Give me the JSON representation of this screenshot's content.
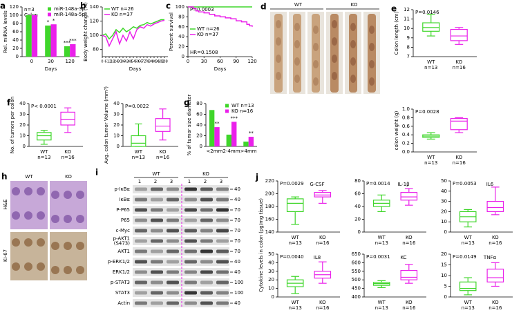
{
  "chart_data": [
    {
      "panel": "a",
      "type": "bar",
      "ylabel": "Rel. miRNA levels",
      "xlabel": "Days",
      "notes": [
        "n=3",
        "Colon"
      ],
      "categories": [
        "0",
        "30",
        "120"
      ],
      "legend": "upper right",
      "series": [
        {
          "name": "miR-148a-3p",
          "color": "#3fd62a",
          "values": [
            100,
            75,
            25
          ],
          "stars": [
            null,
            "*",
            "***"
          ]
        },
        {
          "name": "miR-148a-5p",
          "color": "#ea20ea",
          "values": [
            100,
            78,
            30
          ],
          "stars": [
            null,
            "*",
            "***"
          ]
        }
      ],
      "ylim": [
        0,
        120
      ],
      "yticks": [
        0,
        20,
        40,
        60,
        80,
        100,
        120
      ]
    },
    {
      "panel": "b",
      "type": "line",
      "ylabel": "Body weight change (%)",
      "xlabel": "Days",
      "legend": "upper left",
      "x": [
        0,
        6,
        12,
        18,
        24,
        30,
        36,
        42,
        48,
        54,
        60,
        66,
        72,
        78,
        84,
        90,
        96,
        102,
        108
      ],
      "series": [
        {
          "name": "WT n=26",
          "color": "#3fd62a",
          "values": [
            100,
            102,
            95,
            100,
            108,
            104,
            110,
            105,
            108,
            112,
            110,
            114,
            115,
            118,
            116,
            118,
            120,
            122,
            122
          ]
        },
        {
          "name": "KO n=37",
          "color": "#ea20ea",
          "values": [
            100,
            98,
            85,
            95,
            105,
            88,
            100,
            92,
            105,
            95,
            108,
            112,
            110,
            115,
            113,
            116,
            118,
            120,
            121
          ]
        }
      ],
      "xlim": [
        0,
        114
      ],
      "xticks": [
        0,
        6,
        12,
        18,
        24,
        30,
        36,
        42,
        48,
        54,
        60,
        66,
        72,
        78,
        84,
        90,
        96,
        102,
        108
      ],
      "ylim": [
        70,
        140
      ],
      "yticks": [
        80,
        100,
        120,
        140
      ]
    },
    {
      "panel": "c",
      "type": "step",
      "ylabel": "Percent survival",
      "xlabel": "Days",
      "notes": [
        "P=0.0003"
      ],
      "footer_note": "HR=0.1508",
      "legend": "center left",
      "series": [
        {
          "name": "WT n=26",
          "color": "#3fd62a",
          "x": [
            0,
            120
          ],
          "values": [
            100,
            100
          ]
        },
        {
          "name": "KO n=37",
          "color": "#ea20ea",
          "x": [
            0,
            10,
            15,
            20,
            30,
            40,
            50,
            60,
            70,
            80,
            90,
            100,
            110,
            115,
            120
          ],
          "values": [
            100,
            97,
            92,
            90,
            88,
            85,
            82,
            80,
            78,
            76,
            72,
            70,
            65,
            62,
            60
          ]
        }
      ],
      "xlim": [
        0,
        120
      ],
      "xticks": [
        0,
        30,
        60,
        90,
        120
      ],
      "ylim": [
        0,
        100
      ],
      "yticks": [
        0,
        20,
        40,
        60,
        80,
        100
      ]
    },
    {
      "panel": "d",
      "type": "photo",
      "groups": [
        "WT",
        "KO"
      ]
    },
    {
      "panel": "e",
      "type": "box",
      "ylabel": "Colon length (cm)",
      "notes": [
        "P=0.0146"
      ],
      "groups": [
        {
          "name": "WT",
          "n": "n=13",
          "color": "#3fd62a",
          "stats": [
            9.2,
            9.7,
            10.1,
            10.6,
            11.5
          ]
        },
        {
          "name": "KO",
          "n": "n=16",
          "color": "#ea20ea",
          "stats": [
            8.3,
            8.7,
            9.2,
            9.9,
            10.1
          ]
        }
      ],
      "ylim": [
        7,
        12
      ],
      "yticks": [
        7,
        8,
        9,
        10,
        11,
        12
      ]
    },
    {
      "type": "box",
      "ylabel": "colon weight (g)",
      "notes": [
        "P=0.0028"
      ],
      "groups": [
        {
          "name": "WT",
          "n": "n=13",
          "color": "#3fd62a",
          "stats": [
            0.3,
            0.34,
            0.37,
            0.4,
            0.45
          ]
        },
        {
          "name": "KO",
          "n": "n=16",
          "color": "#ea20ea",
          "stats": [
            0.45,
            0.52,
            0.72,
            0.78,
            0.8
          ]
        }
      ],
      "ylim": [
        0,
        1
      ],
      "yticks": [
        {
          "value": 0,
          "label": "0.0"
        },
        0.2,
        0.4,
        0.6,
        0.8,
        {
          "value": 1,
          "label": "1.0"
        }
      ]
    },
    {
      "panel": "f",
      "type": "box",
      "ylabel": "No. of tumors per colon",
      "notes": [
        "P< 0.0001"
      ],
      "groups": [
        {
          "name": "WT",
          "n": "n=13",
          "color": "#3fd62a",
          "stats": [
            2,
            6,
            10,
            13,
            15
          ]
        },
        {
          "name": "KO",
          "n": "n=16",
          "color": "#ea20ea",
          "stats": [
            13,
            20,
            25,
            32,
            36
          ]
        }
      ],
      "ylim": [
        0,
        40
      ],
      "yticks": [
        0,
        10,
        20,
        30,
        40
      ]
    },
    {
      "type": "box",
      "ylabel": "Avg. colon tumor Volume (mm³)",
      "notes": [
        "P=0.0022"
      ],
      "groups": [
        {
          "name": "WT",
          "n": "n=13",
          "color": "#3fd62a",
          "stats": [
            0,
            0,
            3,
            10,
            21
          ]
        },
        {
          "name": "KO",
          "n": "n=16",
          "color": "#ea20ea",
          "stats": [
            6,
            14,
            19,
            26,
            35
          ]
        }
      ],
      "ylim": [
        0,
        40
      ],
      "yticks": [
        0,
        10,
        20,
        30,
        40
      ]
    },
    {
      "panel": "g",
      "type": "bar",
      "ylabel": "% of tumor size diameter",
      "categories": [
        "<2mm",
        "2-4mm",
        ">4mm"
      ],
      "legend": "upper right",
      "series": [
        {
          "name": "WT n=13",
          "color": "#3fd62a",
          "values": [
            68,
            22,
            9
          ],
          "stars": [
            null,
            null,
            null
          ]
        },
        {
          "name": "KO n=16",
          "color": "#ea20ea",
          "values": [
            36,
            46,
            18
          ],
          "stars": [
            "**",
            "***",
            "**"
          ]
        }
      ],
      "ylim": [
        0,
        80
      ],
      "yticks": [
        0,
        20,
        40,
        60,
        80
      ]
    },
    {
      "panel": "h",
      "type": "photo-grid",
      "columns": [
        "WT",
        "KO"
      ],
      "rows": [
        "H&E",
        "Ki-67"
      ]
    },
    {
      "panel": "i",
      "type": "blot",
      "groups": [
        {
          "name": "WT",
          "lanes": [
            "1",
            "2",
            "3"
          ]
        },
        {
          "name": "KO",
          "lanes": [
            "1",
            "2",
            "3"
          ]
        }
      ],
      "rows": [
        {
          "label": "p-IκBα",
          "mw": 40
        },
        {
          "label": "IκBα",
          "mw": 40
        },
        {
          "label": "P-P65",
          "mw": 70
        },
        {
          "label": "P65",
          "mw": 70
        },
        {
          "label": "c-Myc",
          "mw": 70
        },
        {
          "label": "p-AKT1",
          "sublabel": "(S473)",
          "mw": 70
        },
        {
          "label": "AKT1",
          "mw": 70
        },
        {
          "label": "p-ERK1/2",
          "mw": 40
        },
        {
          "label": "ERK1/2",
          "mw": 40
        },
        {
          "label": "p-STAT3",
          "mw": 100
        },
        {
          "label": "STAT3",
          "mw": 100
        },
        {
          "label": "Actin",
          "mw": 40
        }
      ]
    },
    {
      "panel": "j",
      "type": "axis-label",
      "text": "Cytokine levels in colon (pg/mg tissue)"
    },
    {
      "type": "box",
      "title": "G-CSF",
      "notes": [
        "P=0.0029"
      ],
      "groups": [
        {
          "name": "WT",
          "n": "n=13",
          "color": "#3fd62a",
          "stats": [
            152,
            172,
            185,
            192,
            195
          ]
        },
        {
          "name": "KO",
          "n": "n=16",
          "color": "#ea20ea",
          "stats": [
            185,
            195,
            198,
            202,
            205
          ]
        }
      ],
      "ylim": [
        140,
        220
      ],
      "yticks": [
        140,
        160,
        180,
        200,
        220
      ]
    },
    {
      "type": "box",
      "title": "IL-1β",
      "notes": [
        "P=0.0014"
      ],
      "groups": [
        {
          "name": "WT",
          "n": "n=13",
          "color": "#3fd62a",
          "stats": [
            32,
            40,
            45,
            50,
            58
          ]
        },
        {
          "name": "KO",
          "n": "n=16",
          "color": "#ea20ea",
          "stats": [
            42,
            50,
            55,
            62,
            68
          ]
        }
      ],
      "ylim": [
        0,
        80
      ],
      "yticks": [
        0,
        20,
        40,
        60,
        80
      ]
    },
    {
      "type": "box",
      "title": "IL6",
      "notes": [
        "P=0.0053"
      ],
      "groups": [
        {
          "name": "WT",
          "n": "n=13",
          "color": "#3fd62a",
          "stats": [
            5,
            10,
            15,
            20,
            22
          ]
        },
        {
          "name": "KO",
          "n": "n=16",
          "color": "#ea20ea",
          "stats": [
            17,
            20,
            24,
            30,
            44
          ]
        }
      ],
      "ylim": [
        0,
        50
      ],
      "yticks": [
        0,
        10,
        20,
        30,
        40,
        50
      ]
    },
    {
      "type": "box",
      "title": "IL8",
      "notes": [
        "P=0.0040"
      ],
      "groups": [
        {
          "name": "WT",
          "n": "n=13",
          "color": "#3fd62a",
          "stats": [
            4,
            12,
            16,
            20,
            24
          ]
        },
        {
          "name": "KO",
          "n": "n=16",
          "color": "#ea20ea",
          "stats": [
            16,
            22,
            26,
            30,
            41
          ]
        }
      ],
      "ylim": [
        0,
        50
      ],
      "yticks": [
        0,
        10,
        20,
        30,
        40,
        50
      ]
    },
    {
      "type": "box",
      "title": "KC",
      "notes": [
        "P=0.0031"
      ],
      "groups": [
        {
          "name": "WT",
          "n": "n=13",
          "color": "#3fd62a",
          "stats": [
            455,
            468,
            478,
            485,
            495
          ]
        },
        {
          "name": "KO",
          "n": "n=16",
          "color": "#ea20ea",
          "stats": [
            480,
            500,
            515,
            555,
            590
          ]
        }
      ],
      "ylim": [
        400,
        650
      ],
      "yticks": [
        400,
        450,
        500,
        550,
        600,
        650
      ]
    },
    {
      "type": "box",
      "title": "TNFα",
      "notes": [
        "P=0.0149"
      ],
      "groups": [
        {
          "name": "WT",
          "n": "n=13",
          "color": "#3fd62a",
          "stats": [
            1,
            3,
            4,
            7,
            9
          ]
        },
        {
          "name": "KO",
          "n": "n=16",
          "color": "#ea20ea",
          "stats": [
            5,
            7,
            9,
            13,
            16
          ]
        }
      ],
      "ylim": [
        0,
        20
      ],
      "yticks": [
        0,
        5,
        10,
        15,
        20
      ]
    }
  ]
}
